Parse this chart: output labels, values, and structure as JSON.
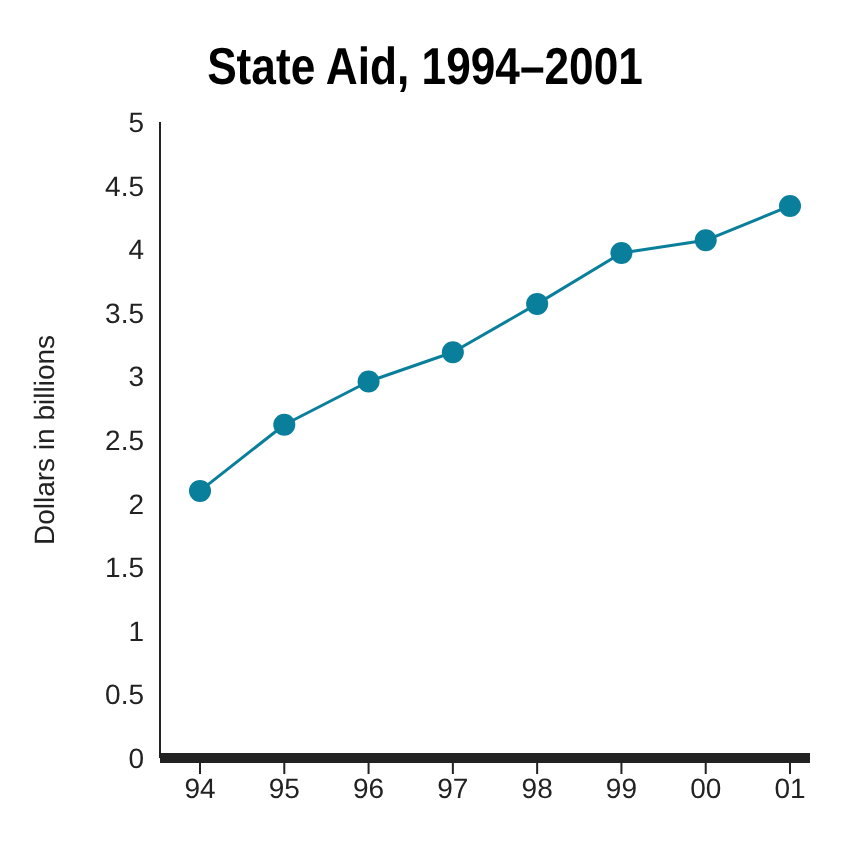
{
  "chart_data": {
    "type": "line",
    "title": "State Aid, 1994–2001",
    "ylabel": "Dollars in billions",
    "categories": [
      "94",
      "95",
      "96",
      "97",
      "98",
      "99",
      "00",
      "01"
    ],
    "series": [
      {
        "color": "#0a7f9c",
        "values": [
          2.1,
          2.62,
          2.96,
          3.19,
          3.57,
          3.97,
          4.07,
          4.34
        ]
      }
    ],
    "ylim": [
      0,
      5
    ],
    "yticks": [
      0,
      0.5,
      1,
      1.5,
      2,
      2.5,
      3,
      3.5,
      4,
      4.5,
      5
    ],
    "grid": false,
    "marker": "circle",
    "line_style": "solid"
  }
}
